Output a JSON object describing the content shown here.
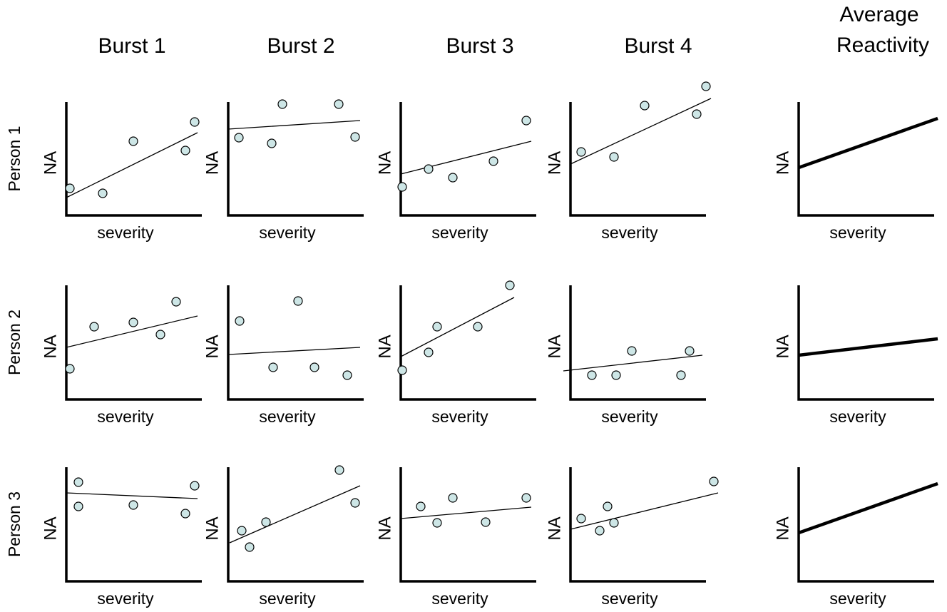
{
  "columns": [
    "Burst 1",
    "Burst 2",
    "Burst 3",
    "Burst 4"
  ],
  "average_title": [
    "Average",
    "Reactivity"
  ],
  "rows": [
    "Person 1",
    "Person 2",
    "Person 3"
  ],
  "x_label": "severity",
  "y_label": "NA"
}
